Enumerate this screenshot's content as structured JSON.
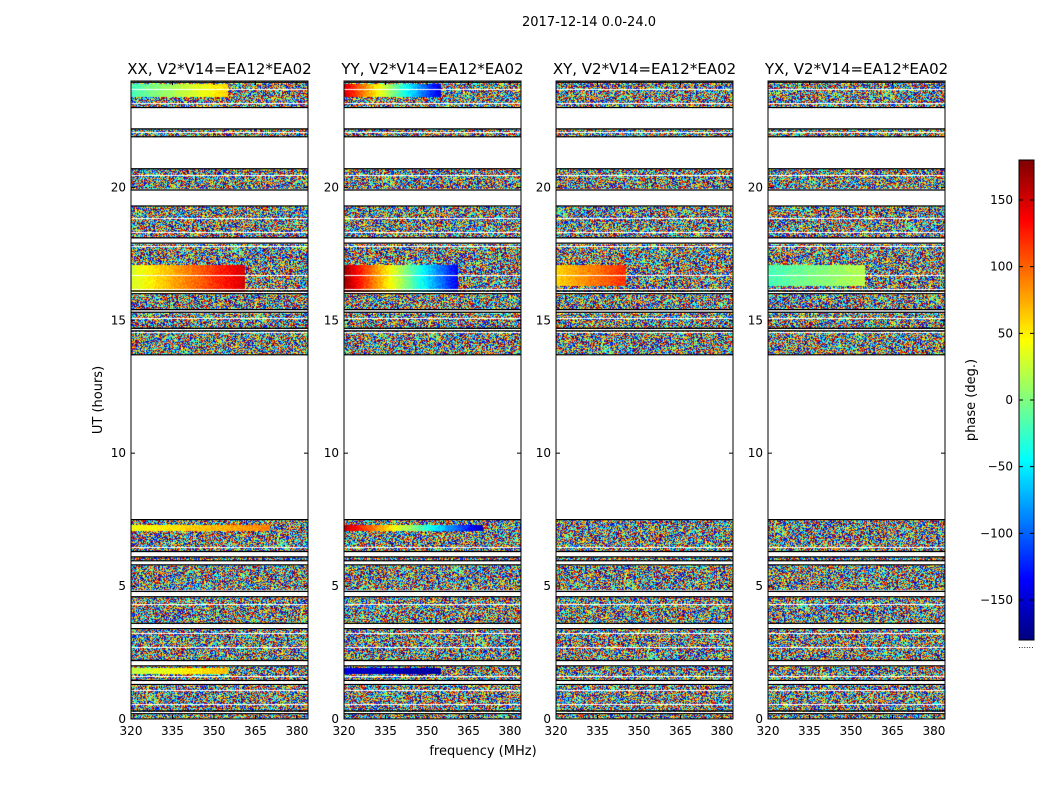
{
  "figure": {
    "suptitle": "2017-12-14 0.0-24.0",
    "xlabel": "frequency (MHz)",
    "ylabel": "UT (hours)",
    "colorbar_label": "phase (deg.)",
    "colorbar_ticks": [
      "150",
      "100",
      "50",
      "0",
      "−50",
      "−100",
      "−150"
    ],
    "colorbar_tick_values": [
      150,
      100,
      50,
      0,
      -50,
      -100,
      -150
    ],
    "colorbar_range": [
      -180,
      180
    ],
    "colormap": "jet",
    "colorbar_footer": "......"
  },
  "chart_data": [
    {
      "type": "heatmap",
      "title": "XX, V2*V14=EA12*EA02",
      "xlabel": "",
      "ylabel": "UT (hours)",
      "x_ticks": [
        "320",
        "335",
        "350",
        "365",
        "380"
      ],
      "x_tick_values": [
        320,
        335,
        350,
        365,
        380
      ],
      "y_ticks": [
        "0",
        "5",
        "10",
        "15",
        "20"
      ],
      "y_tick_values": [
        0,
        5,
        10,
        15,
        20
      ],
      "xlim": [
        320,
        384
      ],
      "ylim": [
        0,
        24
      ],
      "coherent_bands": [
        {
          "t0": 16.1,
          "t1": 17.1,
          "f_end": 361,
          "phase_start": 30,
          "phase_end": 150
        },
        {
          "t0": 23.4,
          "t1": 23.9,
          "f_end": 355,
          "phase_start": -20,
          "phase_end": 60
        },
        {
          "t0": 7.1,
          "t1": 7.3,
          "f_end": 370,
          "phase_start": 40,
          "phase_end": 90
        },
        {
          "t0": 1.7,
          "t1": 1.95,
          "f_end": 355,
          "phase_start": 20,
          "phase_end": 70
        }
      ]
    },
    {
      "type": "heatmap",
      "title": "YY, V2*V14=EA12*EA02",
      "xlabel": "frequency (MHz)",
      "ylabel": "",
      "x_ticks": [
        "320",
        "335",
        "350",
        "365",
        "380"
      ],
      "x_tick_values": [
        320,
        335,
        350,
        365,
        380
      ],
      "y_ticks": [
        "0",
        "5",
        "10",
        "15",
        "20"
      ],
      "y_tick_values": [
        0,
        5,
        10,
        15,
        20
      ],
      "xlim": [
        320,
        384
      ],
      "ylim": [
        0,
        24
      ],
      "coherent_bands": [
        {
          "t0": 16.1,
          "t1": 17.1,
          "f_end": 361,
          "phase_start": 170,
          "phase_end": -140
        },
        {
          "t0": 23.4,
          "t1": 23.9,
          "f_end": 355,
          "phase_start": 150,
          "phase_end": -150
        },
        {
          "t0": 7.1,
          "t1": 7.3,
          "f_end": 370,
          "phase_start": 160,
          "phase_end": -160
        },
        {
          "t0": 1.7,
          "t1": 1.95,
          "f_end": 355,
          "phase_start": -150,
          "phase_end": -170
        }
      ]
    },
    {
      "type": "heatmap",
      "title": "XY, V2*V14=EA12*EA02",
      "xlabel": "",
      "ylabel": "",
      "x_ticks": [
        "320",
        "335",
        "350",
        "365",
        "380"
      ],
      "x_tick_values": [
        320,
        335,
        350,
        365,
        380
      ],
      "y_ticks": [
        "0",
        "5",
        "10",
        "15",
        "20"
      ],
      "y_tick_values": [
        0,
        5,
        10,
        15,
        20
      ],
      "xlim": [
        320,
        384
      ],
      "ylim": [
        0,
        24
      ],
      "coherent_bands": [
        {
          "t0": 16.3,
          "t1": 17.1,
          "f_end": 345,
          "phase_start": 60,
          "phase_end": 120
        }
      ]
    },
    {
      "type": "heatmap",
      "title": "YX, V2*V14=EA12*EA02",
      "xlabel": "",
      "ylabel": "",
      "x_ticks": [
        "320",
        "335",
        "350",
        "365",
        "380"
      ],
      "x_tick_values": [
        320,
        335,
        350,
        365,
        380
      ],
      "y_ticks": [
        "0",
        "5",
        "10",
        "15",
        "20"
      ],
      "y_tick_values": [
        0,
        5,
        10,
        15,
        20
      ],
      "xlim": [
        320,
        384
      ],
      "ylim": [
        0,
        24
      ],
      "coherent_bands": [
        {
          "t0": 16.3,
          "t1": 17.1,
          "f_end": 355,
          "phase_start": -20,
          "phase_end": 20
        }
      ]
    }
  ],
  "flagged_gaps_hours": [
    [
      7.5,
      13.7
    ],
    [
      20.7,
      21.9
    ],
    [
      19.3,
      19.9
    ],
    [
      22.2,
      23.0
    ],
    [
      23.95,
      24.0
    ],
    [
      17.9,
      18.1
    ],
    [
      15.3,
      15.4
    ],
    [
      16.0,
      16.1
    ],
    [
      14.6,
      14.7
    ],
    [
      6.1,
      6.3
    ],
    [
      4.6,
      4.8
    ],
    [
      3.4,
      3.6
    ],
    [
      2.0,
      2.2
    ],
    [
      1.3,
      1.45
    ],
    [
      0.2,
      0.3
    ],
    [
      5.8,
      5.95
    ]
  ]
}
